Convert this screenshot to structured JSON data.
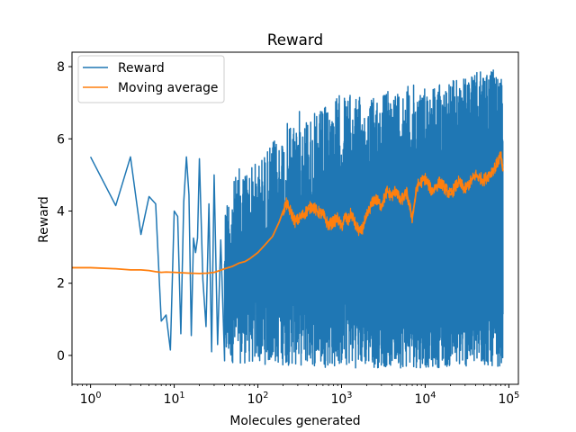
{
  "chart_data": {
    "type": "line",
    "title": "Reward",
    "xlabel": "Molecules generated",
    "ylabel": "Reward",
    "xscale": "log",
    "xlim": [
      0.6,
      130000
    ],
    "ylim": [
      -0.8,
      8.4
    ],
    "x_ticks": [
      {
        "base": "10",
        "exp": "0",
        "value": 1
      },
      {
        "base": "10",
        "exp": "1",
        "value": 10
      },
      {
        "base": "10",
        "exp": "2",
        "value": 100
      },
      {
        "base": "10",
        "exp": "3",
        "value": 1000
      },
      {
        "base": "10",
        "exp": "4",
        "value": 10000
      },
      {
        "base": "10",
        "exp": "5",
        "value": 100000
      }
    ],
    "y_ticks": [
      "0",
      "2",
      "4",
      "6",
      "8"
    ],
    "grid": false,
    "legend_position": "top-left",
    "colors": {
      "reward": "#1f77b4",
      "moving_average": "#ff7f0e"
    },
    "series": [
      {
        "name": "Reward",
        "x": [
          1,
          2,
          3,
          4,
          5,
          6,
          7,
          8,
          9,
          10,
          11,
          12,
          13,
          14,
          15,
          16,
          17,
          18,
          19,
          20,
          22,
          24,
          26,
          28,
          30,
          33,
          36,
          40
        ],
        "y": [
          5.5,
          4.15,
          5.5,
          3.35,
          4.4,
          4.2,
          0.95,
          1.12,
          0.15,
          4.0,
          3.85,
          0.6,
          4.25,
          5.5,
          4.45,
          0.55,
          3.25,
          2.85,
          3.25,
          5.45,
          2.1,
          0.8,
          4.2,
          0.1,
          5.0,
          0.3,
          3.2,
          -0.15
        ],
        "dense_region": {
          "x_range": [
            40,
            85000
          ],
          "min_envelope": [
            [
              40,
              -0.2
            ],
            [
              100,
              -0.25
            ],
            [
              1000,
              -0.35
            ],
            [
              10000,
              -0.35
            ],
            [
              85000,
              -0.3
            ]
          ],
          "max_envelope": [
            [
              40,
              4.3
            ],
            [
              60,
              5.2
            ],
            [
              100,
              5.4
            ],
            [
              200,
              6.3
            ],
            [
              300,
              6.8
            ],
            [
              500,
              6.7
            ],
            [
              1000,
              7.3
            ],
            [
              2000,
              7.1
            ],
            [
              5000,
              7.5
            ],
            [
              10000,
              7.5
            ],
            [
              30000,
              7.7
            ],
            [
              60000,
              8.0
            ],
            [
              85000,
              7.6
            ]
          ]
        }
      },
      {
        "name": "Moving average",
        "x": [
          0.6,
          1,
          2,
          3,
          4,
          5,
          6,
          7,
          8,
          10,
          15,
          20,
          25,
          30,
          35,
          40,
          50,
          60,
          70,
          80,
          100,
          120,
          150,
          180,
          200,
          220,
          250,
          280,
          300,
          350,
          400,
          450,
          500,
          600,
          700,
          800,
          900,
          1000,
          1100,
          1200,
          1300,
          1500,
          1700,
          2000,
          2200,
          2500,
          3000,
          3500,
          4000,
          4500,
          5000,
          6000,
          7000,
          8000,
          10000,
          12000,
          15000,
          20000,
          25000,
          30000,
          40000,
          50000,
          60000,
          70000,
          80000,
          85000
        ],
        "y": [
          2.43,
          2.43,
          2.4,
          2.37,
          2.37,
          2.35,
          2.32,
          2.3,
          2.31,
          2.3,
          2.28,
          2.27,
          2.28,
          2.3,
          2.35,
          2.4,
          2.47,
          2.56,
          2.6,
          2.68,
          2.85,
          3.05,
          3.3,
          3.7,
          4.0,
          4.2,
          3.95,
          3.7,
          3.75,
          3.9,
          4.05,
          4.15,
          4.0,
          3.9,
          3.6,
          3.7,
          3.8,
          3.55,
          3.85,
          3.7,
          3.95,
          3.55,
          3.4,
          3.85,
          4.1,
          4.35,
          4.15,
          4.55,
          4.4,
          4.6,
          4.25,
          4.5,
          3.8,
          4.7,
          4.9,
          4.55,
          4.8,
          4.45,
          4.8,
          4.6,
          5.0,
          4.85,
          5.05,
          5.25,
          5.55,
          5.1
        ]
      }
    ]
  }
}
